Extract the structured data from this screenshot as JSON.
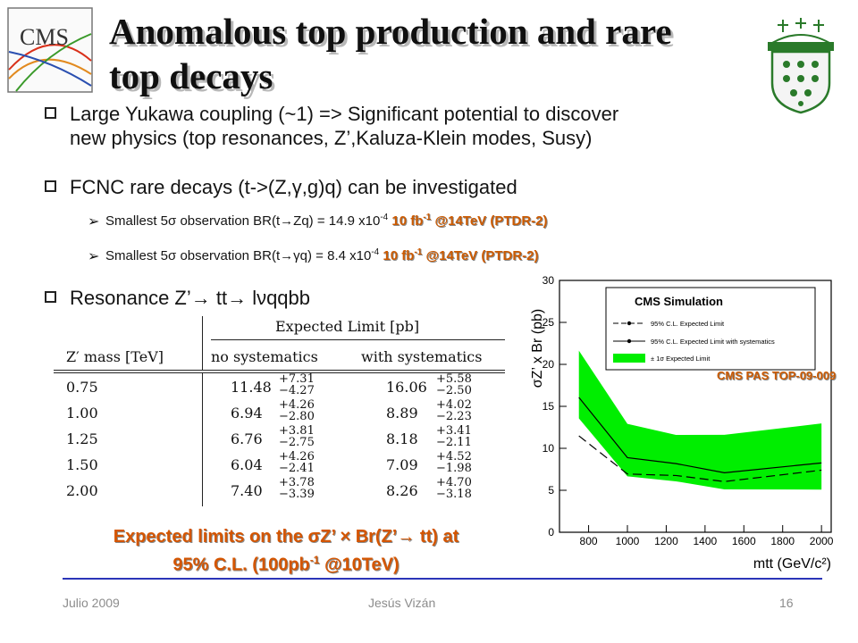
{
  "slide": {
    "title_line1": "Anomalous top production and rare",
    "title_line2": "top decays",
    "bullets": [
      {
        "line1": "Large Yukawa coupling (~1) => Significant potential to discover",
        "line2": "new physics (top resonances, Z’,Kaluza-Klein modes, Susy)"
      },
      {
        "line1": "FCNC rare decays (t->(Z,γ,g)q) can be investigated"
      },
      {
        "line1": "Resonance Z’→ tt→ lνqqbb"
      }
    ],
    "subbullets": [
      {
        "text": "Smallest 5σ observation BR(t→Zq) = 14.9 x10",
        "exp": "-4",
        "red": "10 fb",
        "red_exp": "-1",
        "red_tail": " @14TeV (PTDR-2)"
      },
      {
        "text": "Smallest 5σ observation BR(t→γq) = 8.4 x10",
        "exp": "-4",
        "red": "10 fb",
        "red_exp": "-1",
        "red_tail": " @14TeV (PTDR-2)"
      }
    ],
    "caption_line1": "Expected limits on the σZ’ × Br(Z’→ tt) at",
    "caption_line2_a": "95% C.L. (100pb",
    "caption_line2_exp": "-1",
    "caption_line2_b": " @10TeV)",
    "footer_left": "Julio 2009",
    "footer_center": "Jesús Vizán",
    "footer_right": "16",
    "logo_cms_text": "CMS"
  },
  "table": {
    "group_header": "Expected Limit [pb]",
    "col_mass": "Z′ mass [TeV]",
    "col_nosys": "no systematics",
    "col_sys": "with systematics",
    "rows": [
      {
        "mass": "0.75",
        "ns": "11.48",
        "ns_up": "+7.31",
        "ns_dn": "−4.27",
        "s": "16.06",
        "s_up": "+5.58",
        "s_dn": "−2.50"
      },
      {
        "mass": "1.00",
        "ns": "6.94",
        "ns_up": "+4.26",
        "ns_dn": "−2.80",
        "s": "8.89",
        "s_up": "+4.02",
        "s_dn": "−2.23"
      },
      {
        "mass": "1.25",
        "ns": "6.76",
        "ns_up": "+3.81",
        "ns_dn": "−2.75",
        "s": "8.18",
        "s_up": "+3.41",
        "s_dn": "−2.11"
      },
      {
        "mass": "1.50",
        "ns": "6.04",
        "ns_up": "+4.26",
        "ns_dn": "−2.41",
        "s": "7.09",
        "s_up": "+4.52",
        "s_dn": "−1.98"
      },
      {
        "mass": "2.00",
        "ns": "7.40",
        "ns_up": "+3.78",
        "ns_dn": "−3.39",
        "s": "8.26",
        "s_up": "+4.70",
        "s_dn": "−3.18"
      }
    ]
  },
  "chart_data": {
    "type": "line",
    "title": "CMS Simulation",
    "annotation": "CMS PAS TOP-09-009",
    "ylabel": "σZ’ x Br (pb)",
    "xlabel": "mtt (GeV/c²)",
    "xlim": [
      650,
      2050
    ],
    "ylim": [
      0,
      30
    ],
    "xticks": [
      "800",
      "1000",
      "1200",
      "1400",
      "1600",
      "1800",
      "2000"
    ],
    "yticks": [
      "0",
      "5",
      "10",
      "15",
      "20",
      "25",
      "30"
    ],
    "x": [
      750,
      1000,
      1250,
      1500,
      2000
    ],
    "series": [
      {
        "name": "95% C.L. Expected Limit",
        "style": "dashed",
        "color": "#000000",
        "values": [
          11.48,
          6.94,
          6.76,
          6.04,
          7.4
        ]
      },
      {
        "name": "95% C.L. Expected Limit with systematics",
        "style": "solid",
        "color": "#000000",
        "values": [
          16.06,
          8.89,
          8.18,
          7.09,
          8.26
        ]
      },
      {
        "name": "± 1σ Expected Limit",
        "style": "band",
        "color": "#00ee00",
        "upper": [
          21.64,
          12.91,
          11.59,
          11.61,
          12.96
        ],
        "lower": [
          13.56,
          6.66,
          6.07,
          5.11,
          5.08
        ]
      }
    ],
    "legend_position": "top-right"
  }
}
